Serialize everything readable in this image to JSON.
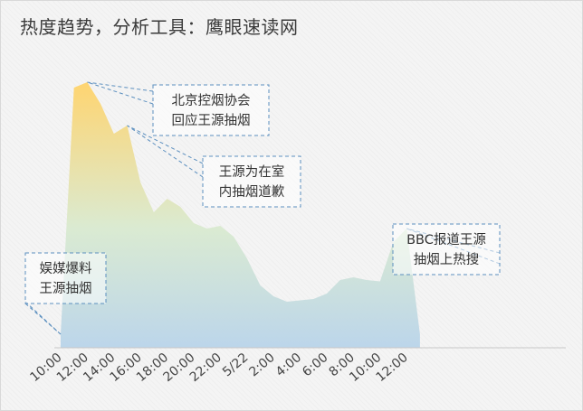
{
  "title": "热度趋势，分析工具：鹰眼速读网",
  "chart_data": {
    "type": "area",
    "title": "热度趋势，分析工具：鹰眼速读网",
    "xlabel": "",
    "ylabel": "",
    "ylim": [
      0,
      100
    ],
    "grid": false,
    "x_tick_labels": [
      "10:00",
      "12:00",
      "14:00",
      "16:00",
      "18:00",
      "20:00",
      "22:00",
      "5/22",
      "2:00",
      "4:00",
      "6:00",
      "8:00",
      "10:00",
      "12:00"
    ],
    "series": [
      {
        "values": [
          5,
          96,
          98,
          90,
          79,
          82,
          61,
          50,
          55,
          52,
          46,
          44,
          45,
          41,
          33,
          23,
          19,
          17,
          17.5,
          18,
          20,
          25,
          26,
          25,
          24.5,
          39,
          44,
          5
        ]
      }
    ],
    "annotations": [
      {
        "lines": [
          "娱媒爆料",
          "王源抽烟"
        ],
        "point_index": 0
      },
      {
        "lines": [
          "北京控烟协会",
          "回应王源抽烟"
        ],
        "point_index": 2
      },
      {
        "lines": [
          "王源为在室",
          "内抽烟道歉"
        ],
        "point_index": 5
      },
      {
        "lines": [
          "BBC报道王源",
          "抽烟上热搜"
        ],
        "point_index": 26
      }
    ],
    "colors": {
      "gradient_top": "#ffd36a",
      "gradient_mid": "#d9ead0",
      "gradient_bottom": "#b9d4ea",
      "callout_border": "#5b8fbf",
      "axis": "#c7c7c7"
    }
  }
}
